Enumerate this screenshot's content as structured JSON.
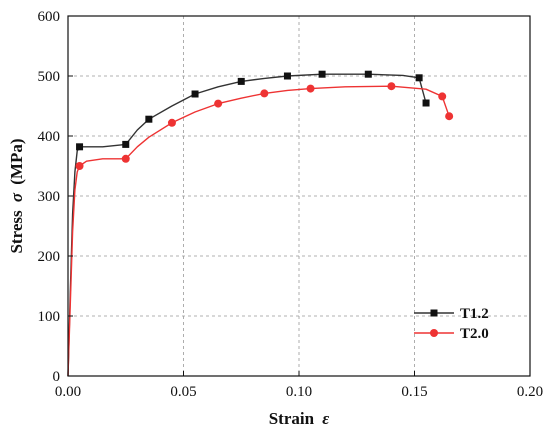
{
  "chart_data": {
    "type": "line",
    "title": "",
    "xlabel_main": "Strain",
    "xlabel_symbol": "ε",
    "ylabel_main": "Stress",
    "ylabel_symbol": "σ",
    "ylabel_unit": "(MPa)",
    "xlim": [
      0.0,
      0.2
    ],
    "ylim": [
      0,
      600
    ],
    "x_ticks": [
      "0.00",
      "0.05",
      "0.10",
      "0.15",
      "0.20"
    ],
    "y_ticks": [
      "0",
      "100",
      "200",
      "300",
      "400",
      "500",
      "600"
    ],
    "grid": true,
    "legend_position": "bottom-right",
    "series": [
      {
        "name": "T1.2",
        "color": "#333333",
        "marker": "square",
        "x": [
          0.0,
          0.001,
          0.002,
          0.003,
          0.004,
          0.005,
          0.008,
          0.015,
          0.025,
          0.03,
          0.035,
          0.045,
          0.055,
          0.065,
          0.075,
          0.085,
          0.095,
          0.11,
          0.13,
          0.145,
          0.152,
          0.155
        ],
        "y": [
          0,
          140,
          270,
          340,
          375,
          382,
          382,
          382,
          386,
          410,
          428,
          450,
          470,
          482,
          491,
          496,
          500,
          503,
          503,
          501,
          497,
          455
        ],
        "marker_x": [
          0.005,
          0.025,
          0.035,
          0.055,
          0.075,
          0.095,
          0.11,
          0.13,
          0.152,
          0.155
        ],
        "marker_y": [
          382,
          386,
          428,
          470,
          491,
          500,
          503,
          503,
          497,
          455
        ]
      },
      {
        "name": "T2.0",
        "color": "#ee3333",
        "marker": "circle",
        "x": [
          0.0,
          0.001,
          0.002,
          0.003,
          0.004,
          0.005,
          0.008,
          0.015,
          0.025,
          0.03,
          0.035,
          0.045,
          0.055,
          0.065,
          0.075,
          0.085,
          0.095,
          0.105,
          0.12,
          0.14,
          0.155,
          0.162,
          0.165
        ],
        "y": [
          0,
          120,
          240,
          310,
          340,
          350,
          358,
          362,
          362,
          382,
          398,
          422,
          440,
          454,
          463,
          471,
          476,
          479,
          482,
          483,
          478,
          466,
          433
        ],
        "marker_x": [
          0.005,
          0.025,
          0.045,
          0.065,
          0.085,
          0.105,
          0.14,
          0.162,
          0.165
        ],
        "marker_y": [
          350,
          362,
          422,
          454,
          471,
          479,
          483,
          466,
          433
        ]
      }
    ]
  }
}
